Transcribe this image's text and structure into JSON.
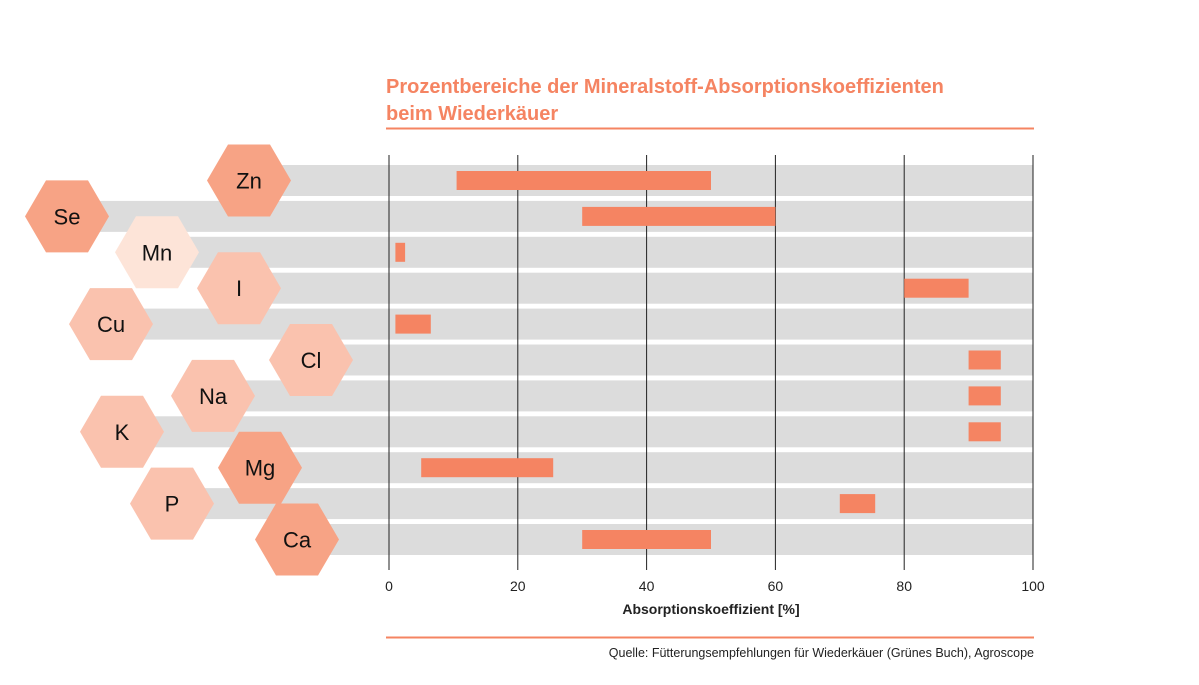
{
  "chart_data": {
    "type": "bar",
    "orientation": "horizontal-range",
    "title_line1": "Prozentbereiche der Mineralstoff-Absorptionskoeffizienten",
    "title_line2": "beim Wiederkäuer",
    "xlabel": "Absorptionskoeffizient [%]",
    "xlim": [
      0,
      100
    ],
    "xticks": [
      "0",
      "20",
      "40",
      "60",
      "80",
      "100"
    ],
    "grid": true,
    "source": "Quelle: Fütterungsempfehlungen für Wiederkäuer (Grünes Buch), Agroscope",
    "categories": [
      "Zn",
      "Se",
      "Mn",
      "I",
      "Cu",
      "Cl",
      "Na",
      "K",
      "Mg",
      "P",
      "Ca"
    ],
    "ranges": [
      [
        10.5,
        50
      ],
      [
        30,
        60
      ],
      [
        1,
        2.5
      ],
      [
        80,
        90
      ],
      [
        1,
        6.5
      ],
      [
        90,
        95
      ],
      [
        90,
        95
      ],
      [
        90,
        95
      ],
      [
        5,
        25.5
      ],
      [
        70,
        75.5
      ],
      [
        30,
        50
      ]
    ]
  },
  "colors": {
    "accent": "#f58462",
    "row_band": "#dcdcdc",
    "title": "#f58462",
    "rule": "#f58462",
    "hex_dark": "#f7a385",
    "hex_medium": "#fac2ae",
    "hex_light": "#fde4d8",
    "grid": "#222222"
  },
  "hex_shades": [
    "dark",
    "dark",
    "light",
    "medium",
    "medium",
    "medium",
    "medium",
    "medium",
    "dark",
    "medium",
    "dark"
  ]
}
